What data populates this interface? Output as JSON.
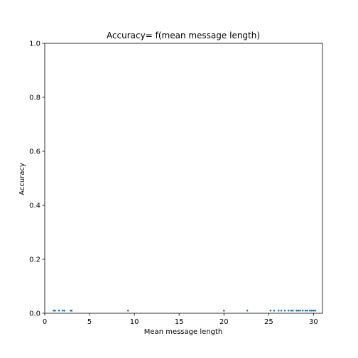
{
  "chart_data": {
    "type": "scatter",
    "title": "Accuracy= f(mean message length)",
    "xlabel": "Mean message length",
    "ylabel": "Accuracy",
    "xlim": [
      0,
      31
    ],
    "ylim": [
      0,
      1.0
    ],
    "xticks": [
      0,
      5,
      10,
      15,
      20,
      25,
      30
    ],
    "xtick_labels": [
      "0",
      "5",
      "10",
      "15",
      "20",
      "25",
      "30"
    ],
    "yticks": [
      0.0,
      0.2,
      0.4,
      0.6,
      0.8,
      1.0
    ],
    "ytick_labels": [
      "0.0",
      "0.2",
      "0.4",
      "0.6",
      "0.8",
      "1.0"
    ],
    "grid": false,
    "legend": "none",
    "marker_color": "#1f77b4",
    "points": [
      {
        "x": 1.0,
        "y": 0.01
      },
      {
        "x": 1.15,
        "y": 0.01
      },
      {
        "x": 1.6,
        "y": 0.01
      },
      {
        "x": 2.0,
        "y": 0.01
      },
      {
        "x": 2.2,
        "y": 0.01
      },
      {
        "x": 2.9,
        "y": 0.01
      },
      {
        "x": 3.0,
        "y": 0.01
      },
      {
        "x": 9.3,
        "y": 0.01
      },
      {
        "x": 20.0,
        "y": 0.01
      },
      {
        "x": 22.6,
        "y": 0.01
      },
      {
        "x": 25.2,
        "y": 0.01
      },
      {
        "x": 25.6,
        "y": 0.01
      },
      {
        "x": 26.1,
        "y": 0.01
      },
      {
        "x": 26.4,
        "y": 0.01
      },
      {
        "x": 26.8,
        "y": 0.01
      },
      {
        "x": 27.2,
        "y": 0.01
      },
      {
        "x": 27.5,
        "y": 0.01
      },
      {
        "x": 27.7,
        "y": 0.01
      },
      {
        "x": 28.1,
        "y": 0.01
      },
      {
        "x": 28.3,
        "y": 0.01
      },
      {
        "x": 28.5,
        "y": 0.01
      },
      {
        "x": 28.8,
        "y": 0.01
      },
      {
        "x": 29.1,
        "y": 0.01
      },
      {
        "x": 29.3,
        "y": 0.01
      },
      {
        "x": 29.6,
        "y": 0.01
      },
      {
        "x": 29.8,
        "y": 0.01
      },
      {
        "x": 30.0,
        "y": 0.01
      },
      {
        "x": 30.2,
        "y": 0.01
      }
    ]
  }
}
